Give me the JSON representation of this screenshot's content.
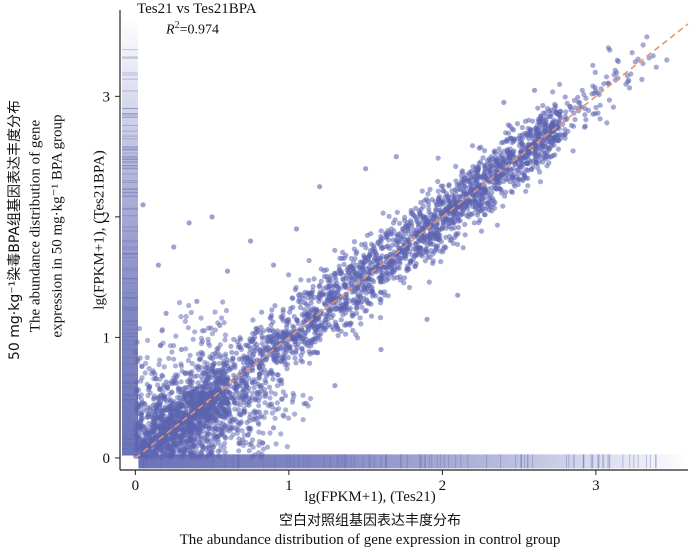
{
  "chart_data": {
    "type": "scatter",
    "title": "Tes21 vs Tes21BPA",
    "annotation": "R²=0.974",
    "r2_prefix": "R",
    "r2_sup": "2",
    "r2_value": "=0.974",
    "xlabel": "lg(FPKM+1), (Tes21)",
    "xlabel_cn": "空白对照组基因表达丰度分布",
    "xlabel_en": "The abundance distribution of gene expression in control group",
    "ylabel": "lg(FPKM+1), (Tes21BPA)",
    "ylabel_en_line2": "expression in 50 mg·kg⁻¹ BPA group",
    "ylabel_en_line1": "The abundance distribution of gene",
    "ylabel_cn": "50 mg·kg⁻¹染毒BPA组基因表达丰度分布",
    "xlim": [
      -0.1,
      3.6
    ],
    "ylim": [
      -0.1,
      3.65
    ],
    "xticks": [
      0,
      1,
      2,
      3
    ],
    "yticks": [
      0,
      1,
      2,
      3
    ],
    "reference_line": {
      "slope": 1,
      "intercept": 0,
      "style": "dashed",
      "color": "#e8956a"
    },
    "point_color": "#5b63b0",
    "trend": {
      "x_range": [
        0,
        3.55
      ],
      "slope": 1.0,
      "spread": 0.11
    },
    "outliers": [
      [
        0.35,
        1.95
      ],
      [
        0.5,
        2.0
      ],
      [
        0.25,
        1.75
      ],
      [
        0.6,
        1.55
      ],
      [
        0.75,
        1.8
      ],
      [
        0.05,
        2.1
      ],
      [
        0.15,
        1.6
      ],
      [
        0.4,
        1.3
      ],
      [
        1.05,
        1.9
      ],
      [
        1.2,
        2.25
      ],
      [
        1.5,
        2.4
      ],
      [
        1.7,
        2.5
      ],
      [
        0.9,
        1.6
      ],
      [
        1.3,
        0.6
      ],
      [
        1.6,
        0.9
      ],
      [
        1.9,
        1.15
      ],
      [
        2.1,
        1.35
      ],
      [
        0.7,
        0.15
      ],
      [
        0.9,
        0.25
      ],
      [
        1.1,
        0.45
      ],
      [
        0.55,
        1.1
      ],
      [
        2.4,
        2.95
      ],
      [
        2.6,
        3.05
      ],
      [
        0.3,
        0.9
      ],
      [
        0.2,
        1.2
      ]
    ]
  }
}
